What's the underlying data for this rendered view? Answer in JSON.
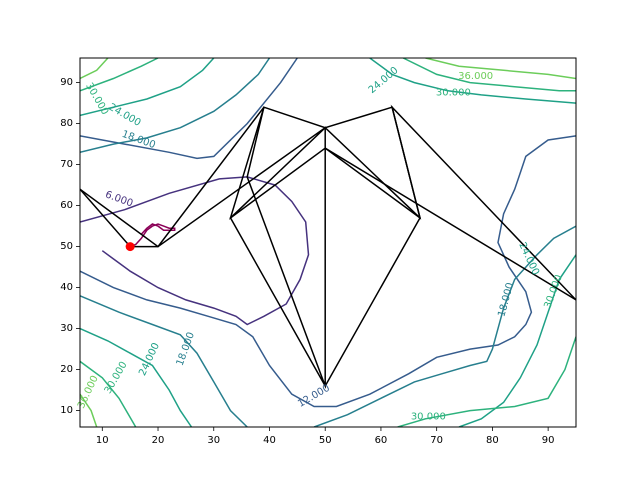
{
  "chart_data": {
    "type": "contour",
    "title": "",
    "xlabel": "",
    "ylabel": "",
    "xlim": [
      6,
      95
    ],
    "ylim": [
      6,
      96
    ],
    "x_ticks": [
      10,
      20,
      30,
      40,
      50,
      60,
      70,
      80,
      90
    ],
    "y_ticks": [
      10,
      20,
      30,
      40,
      50,
      60,
      70,
      80,
      90
    ],
    "contour_levels": [
      {
        "level": 6,
        "color": "#46327e",
        "paths": [
          [
            [
              6,
              56
            ],
            [
              14,
              59
            ],
            [
              22,
              63
            ],
            [
              31,
              66.5
            ],
            [
              36,
              67
            ],
            [
              41,
              65
            ],
            [
              44,
              61
            ],
            [
              46.5,
              56
            ],
            [
              47,
              48
            ],
            [
              45.5,
              42
            ],
            [
              43,
              36
            ],
            [
              39,
              33
            ],
            [
              36,
              31
            ],
            [
              34,
              33
            ],
            [
              30,
              35
            ],
            [
              25,
              37
            ],
            [
              20,
              40
            ],
            [
              15,
              44
            ],
            [
              12,
              47
            ],
            [
              10,
              49
            ]
          ]
        ]
      },
      {
        "level": 12,
        "color": "#365c8d",
        "paths": [
          [
            [
              6,
              77
            ],
            [
              14,
              75
            ],
            [
              22,
              73
            ],
            [
              27,
              71.5
            ],
            [
              30,
              72
            ],
            [
              36,
              80
            ],
            [
              42,
              90
            ],
            [
              45,
              96
            ]
          ],
          [
            [
              6,
              44
            ],
            [
              12,
              40
            ],
            [
              18,
              37
            ],
            [
              24,
              35
            ],
            [
              29,
              33
            ],
            [
              34,
              31
            ],
            [
              37,
              28
            ],
            [
              40,
              21
            ],
            [
              44,
              14
            ],
            [
              48,
              11
            ],
            [
              52,
              11
            ],
            [
              58,
              14
            ],
            [
              65,
              19
            ],
            [
              70,
              23
            ],
            [
              76,
              25
            ],
            [
              81,
              26
            ],
            [
              84,
              28
            ],
            [
              86,
              31
            ],
            [
              87,
              34
            ],
            [
              86,
              39
            ],
            [
              83,
              45
            ],
            [
              81,
              51
            ],
            [
              82,
              58
            ],
            [
              84,
              64
            ],
            [
              85,
              68
            ],
            [
              86,
              72
            ],
            [
              90,
              76
            ],
            [
              95,
              77
            ]
          ]
        ]
      },
      {
        "level": 18,
        "color": "#277f8e",
        "paths": [
          [
            [
              6,
              73
            ],
            [
              12,
              75
            ],
            [
              18,
              76.5
            ],
            [
              24,
              79
            ],
            [
              30,
              83
            ],
            [
              34,
              87
            ],
            [
              38,
              92
            ],
            [
              40,
              96
            ]
          ],
          [
            [
              6,
              38
            ],
            [
              13,
              34
            ],
            [
              19,
              31
            ],
            [
              24,
              28.5
            ],
            [
              27,
              24
            ],
            [
              30,
              17
            ],
            [
              33,
              10
            ],
            [
              36,
              6
            ]
          ],
          [
            [
              48,
              6
            ],
            [
              54,
              9
            ],
            [
              60,
              13
            ],
            [
              66,
              17
            ],
            [
              71,
              19
            ],
            [
              76,
              21
            ],
            [
              79,
              22
            ],
            [
              80,
              25
            ],
            [
              81,
              30
            ],
            [
              82,
              35
            ],
            [
              84,
              42
            ],
            [
              88,
              48
            ],
            [
              91,
              52
            ],
            [
              95,
              55
            ]
          ]
        ]
      },
      {
        "level": 24,
        "color": "#1fa187",
        "paths": [
          [
            [
              6,
              82
            ],
            [
              12,
              84
            ],
            [
              18,
              86
            ],
            [
              24,
              89
            ],
            [
              28,
              93
            ],
            [
              30,
              96
            ]
          ],
          [
            [
              6,
              30
            ],
            [
              11,
              27
            ],
            [
              15,
              24
            ],
            [
              19,
              21
            ],
            [
              22,
              15
            ],
            [
              24,
              10
            ],
            [
              26,
              6
            ]
          ],
          [
            [
              58,
              96
            ],
            [
              62,
              92
            ],
            [
              66,
              90
            ],
            [
              72,
              88
            ],
            [
              78,
              87
            ],
            [
              86,
              86
            ],
            [
              95,
              85
            ]
          ],
          [
            [
              74,
              6
            ],
            [
              78,
              8
            ],
            [
              82,
              12
            ],
            [
              85,
              18
            ],
            [
              88,
              26
            ],
            [
              90,
              34
            ],
            [
              92,
              42
            ],
            [
              95,
              48
            ]
          ]
        ]
      },
      {
        "level": 30,
        "color": "#2db27d",
        "paths": [
          [
            [
              6,
              88
            ],
            [
              12,
              91
            ],
            [
              17,
              94
            ],
            [
              20,
              96
            ]
          ],
          [
            [
              6,
              22
            ],
            [
              10,
              18
            ],
            [
              13,
              13
            ],
            [
              16,
              6
            ]
          ],
          [
            [
              64,
              96
            ],
            [
              70,
              92
            ],
            [
              76,
              90
            ],
            [
              84,
              89
            ],
            [
              92,
              88
            ],
            [
              95,
              88
            ]
          ],
          [
            [
              63,
              6
            ],
            [
              68,
              8
            ],
            [
              76,
              10
            ],
            [
              84,
              11
            ],
            [
              90,
              13
            ],
            [
              93,
              20
            ],
            [
              95,
              28
            ]
          ]
        ]
      },
      {
        "level": 36,
        "color": "#6ccd5a",
        "paths": [
          [
            [
              6,
              91
            ],
            [
              9,
              93
            ],
            [
              11,
              96
            ]
          ],
          [
            [
              6,
              14
            ],
            [
              8,
              10
            ],
            [
              9,
              6
            ]
          ],
          [
            [
              68,
              96
            ],
            [
              74,
              94
            ],
            [
              82,
              93
            ],
            [
              90,
              92
            ],
            [
              95,
              91
            ]
          ]
        ]
      }
    ],
    "contour_labels": [
      {
        "text": "6.000",
        "x": 13,
        "y": 61.5,
        "rotation": -20,
        "color": "#46327e"
      },
      {
        "text": "12.000",
        "x": 48,
        "y": 13.5,
        "rotation": 30,
        "color": "#365c8d"
      },
      {
        "text": "18.000",
        "x": 16.5,
        "y": 76,
        "rotation": -20,
        "color": "#277f8e"
      },
      {
        "text": "18.000",
        "x": 25,
        "y": 25,
        "rotation": 70,
        "color": "#277f8e"
      },
      {
        "text": "18.000",
        "x": 82.5,
        "y": 37,
        "rotation": 75,
        "color": "#277f8e"
      },
      {
        "text": "24.000",
        "x": 14,
        "y": 82,
        "rotation": -30,
        "color": "#1fa187"
      },
      {
        "text": "24.000",
        "x": 60.5,
        "y": 90.5,
        "rotation": 40,
        "color": "#1fa187"
      },
      {
        "text": "24.000",
        "x": 18.5,
        "y": 22.5,
        "rotation": 65,
        "color": "#1fa187"
      },
      {
        "text": "24.000",
        "x": 86.5,
        "y": 47,
        "rotation": -65,
        "color": "#1fa187"
      },
      {
        "text": "30.000",
        "x": 9,
        "y": 86,
        "rotation": -60,
        "color": "#2db27d"
      },
      {
        "text": "30.000",
        "x": 73,
        "y": 87.5,
        "rotation": 0,
        "color": "#2db27d"
      },
      {
        "text": "30.000",
        "x": 12.5,
        "y": 18,
        "rotation": 60,
        "color": "#2db27d"
      },
      {
        "text": "30.000",
        "x": 91,
        "y": 39,
        "rotation": 70,
        "color": "#2db27d"
      },
      {
        "text": "30.000",
        "x": 68.5,
        "y": 8.5,
        "rotation": 0,
        "color": "#2db27d"
      },
      {
        "text": "36.000",
        "x": 77,
        "y": 91.5,
        "rotation": 0,
        "color": "#6ccd5a"
      },
      {
        "text": "36.000",
        "x": 7.5,
        "y": 14.5,
        "rotation": 65,
        "color": "#6ccd5a"
      }
    ],
    "lines": [
      {
        "color": "#000000",
        "points": [
          [
            6,
            64
          ],
          [
            15,
            50
          ],
          [
            20,
            50
          ],
          [
            39,
            84
          ],
          [
            33,
            57
          ],
          [
            50,
            74
          ],
          [
            67,
            57
          ],
          [
            62,
            84
          ],
          [
            95,
            37
          ]
        ]
      },
      {
        "color": "#000000",
        "points": [
          [
            6,
            64
          ],
          [
            20,
            50
          ],
          [
            50,
            79
          ],
          [
            50,
            16
          ],
          [
            33,
            57
          ],
          [
            50,
            79
          ],
          [
            67,
            57
          ],
          [
            50,
            16
          ],
          [
            36,
            67
          ],
          [
            39,
            84
          ],
          [
            50,
            79
          ],
          [
            62,
            84
          ],
          [
            67,
            57
          ]
        ]
      },
      {
        "color": "#000000",
        "points": [
          [
            50,
            74
          ],
          [
            95,
            37
          ]
        ]
      }
    ],
    "path_line": {
      "color": "#8b0057",
      "points": [
        [
          15,
          50
        ],
        [
          16,
          50.5
        ],
        [
          17,
          52
        ],
        [
          18,
          54
        ],
        [
          19,
          55
        ],
        [
          20,
          55.5
        ],
        [
          21,
          55
        ],
        [
          22,
          54.5
        ],
        [
          23,
          54.5
        ],
        [
          23,
          54
        ],
        [
          21,
          54
        ],
        [
          20,
          55
        ],
        [
          19,
          55.5
        ],
        [
          18,
          54.5
        ],
        [
          17,
          53
        ]
      ]
    },
    "marker": {
      "x": 15,
      "y": 50,
      "color": "#ff0000"
    }
  }
}
